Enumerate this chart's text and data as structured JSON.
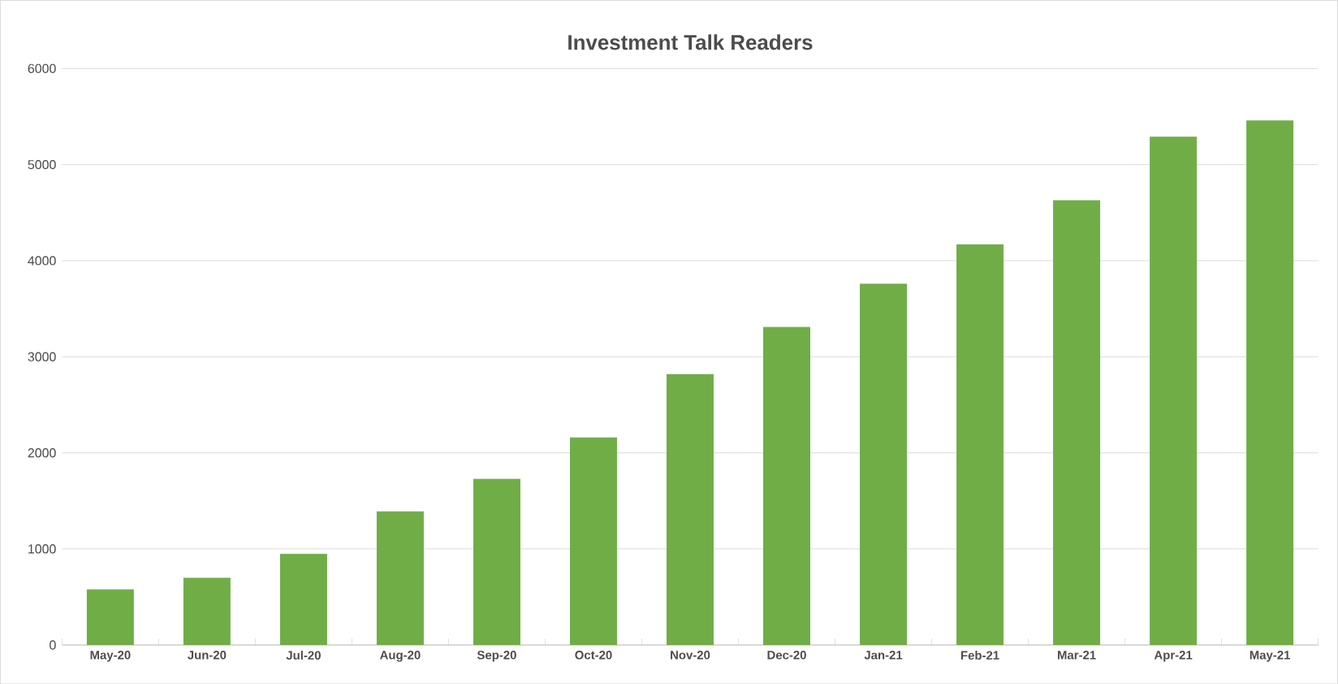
{
  "chart_data": {
    "type": "bar",
    "title": "Investment Talk Readers",
    "categories": [
      "May-20",
      "Jun-20",
      "Jul-20",
      "Aug-20",
      "Sep-20",
      "Oct-20",
      "Nov-20",
      "Dec-20",
      "Jan-21",
      "Feb-21",
      "Mar-21",
      "Apr-21",
      "May-21"
    ],
    "values": [
      580,
      700,
      950,
      1390,
      1730,
      2160,
      2820,
      3310,
      3760,
      4170,
      4630,
      5290,
      5460
    ],
    "color": "#70ad47",
    "ylim": [
      0,
      6000
    ],
    "yticks": [
      0,
      1000,
      2000,
      3000,
      4000,
      5000,
      6000
    ],
    "grid": "y"
  }
}
